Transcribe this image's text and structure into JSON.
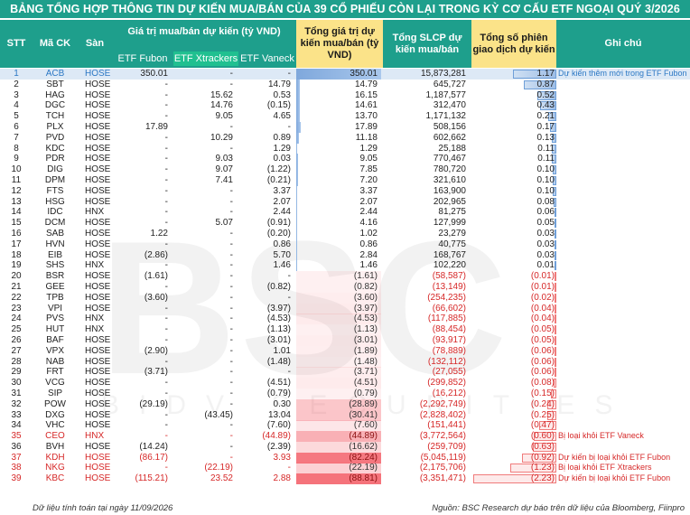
{
  "title": "BẢNG TỔNG HỢP THÔNG TIN DỰ KIẾN MUA/BÁN CỦA 39 CỔ PHIẾU CÒN LẠI TRONG KỲ CƠ CẤU ETF NGOẠI QUÝ 3/2026",
  "headers": {
    "stt": "STT",
    "ma": "Mã CK",
    "san": "Sàn",
    "group": "Giá trị mua/bán dự kiến (tỷ VND)",
    "fubon": "ETF Fubon",
    "xtrackers": "ETF Xtrackers",
    "vaneck": "ETF Vaneck",
    "total": "Tổng giá trị dự kiến mua/bán (tỷ VND)",
    "slcp": "Tổng SLCP dự kiến mua/bán",
    "sessions": "Tổng số phiên giao dịch dự kiến",
    "note": "Ghi chú"
  },
  "colors": {
    "header_bg": "#1e9f8c",
    "highlight_bg": "#fbe389",
    "xtrackers_bg": "#20c090",
    "positive_bar": "#6f9fd8",
    "negative_bar": "#f36b6b",
    "negative_text": "#d62828",
    "first_row_bg": "#dde9f6"
  },
  "rows": [
    {
      "stt": "1",
      "ma": "ACB",
      "san": "HOSE",
      "fubon": "350.01",
      "xtr": "-",
      "van": "-",
      "total": "350.01",
      "tval": 350.01,
      "slcp": "15,873,281",
      "ses": "1.17",
      "sval": 1.17,
      "note": "Dự kiến thêm mới trong ETF Fubon"
    },
    {
      "stt": "2",
      "ma": "SBT",
      "san": "HOSE",
      "fubon": "-",
      "xtr": "-",
      "van": "14.79",
      "total": "14.79",
      "tval": 14.79,
      "slcp": "645,727",
      "ses": "0.87",
      "sval": 0.87,
      "note": ""
    },
    {
      "stt": "3",
      "ma": "HAG",
      "san": "HOSE",
      "fubon": "-",
      "xtr": "15.62",
      "van": "0.53",
      "total": "16.15",
      "tval": 16.15,
      "slcp": "1,187,577",
      "ses": "0.52",
      "sval": 0.52,
      "note": ""
    },
    {
      "stt": "4",
      "ma": "DGC",
      "san": "HOSE",
      "fubon": "-",
      "xtr": "14.76",
      "van": "(0.15)",
      "total": "14.61",
      "tval": 14.61,
      "slcp": "312,470",
      "ses": "0.43",
      "sval": 0.43,
      "note": ""
    },
    {
      "stt": "5",
      "ma": "TCH",
      "san": "HOSE",
      "fubon": "-",
      "xtr": "9.05",
      "van": "4.65",
      "total": "13.70",
      "tval": 13.7,
      "slcp": "1,171,132",
      "ses": "0.21",
      "sval": 0.21,
      "note": ""
    },
    {
      "stt": "6",
      "ma": "PLX",
      "san": "HOSE",
      "fubon": "17.89",
      "xtr": "-",
      "van": "-",
      "total": "17.89",
      "tval": 17.89,
      "slcp": "508,156",
      "ses": "0.17",
      "sval": 0.17,
      "note": ""
    },
    {
      "stt": "7",
      "ma": "PVD",
      "san": "HOSE",
      "fubon": "-",
      "xtr": "10.29",
      "van": "0.89",
      "total": "11.18",
      "tval": 11.18,
      "slcp": "602,662",
      "ses": "0.13",
      "sval": 0.13,
      "note": ""
    },
    {
      "stt": "8",
      "ma": "KDC",
      "san": "HOSE",
      "fubon": "-",
      "xtr": "-",
      "van": "1.29",
      "total": "1.29",
      "tval": 1.29,
      "slcp": "25,188",
      "ses": "0.11",
      "sval": 0.11,
      "note": ""
    },
    {
      "stt": "9",
      "ma": "PDR",
      "san": "HOSE",
      "fubon": "-",
      "xtr": "9.03",
      "van": "0.03",
      "total": "9.05",
      "tval": 9.05,
      "slcp": "770,467",
      "ses": "0.11",
      "sval": 0.11,
      "note": ""
    },
    {
      "stt": "10",
      "ma": "DIG",
      "san": "HOSE",
      "fubon": "-",
      "xtr": "9.07",
      "van": "(1.22)",
      "total": "7.85",
      "tval": 7.85,
      "slcp": "780,720",
      "ses": "0.10",
      "sval": 0.1,
      "note": ""
    },
    {
      "stt": "11",
      "ma": "DPM",
      "san": "HOSE",
      "fubon": "-",
      "xtr": "7.41",
      "van": "(0.21)",
      "total": "7.20",
      "tval": 7.2,
      "slcp": "321,610",
      "ses": "0.10",
      "sval": 0.1,
      "note": ""
    },
    {
      "stt": "12",
      "ma": "FTS",
      "san": "HOSE",
      "fubon": "-",
      "xtr": "-",
      "van": "3.37",
      "total": "3.37",
      "tval": 3.37,
      "slcp": "163,900",
      "ses": "0.10",
      "sval": 0.1,
      "note": ""
    },
    {
      "stt": "13",
      "ma": "HSG",
      "san": "HOSE",
      "fubon": "-",
      "xtr": "-",
      "van": "2.07",
      "total": "2.07",
      "tval": 2.07,
      "slcp": "202,965",
      "ses": "0.08",
      "sval": 0.08,
      "note": ""
    },
    {
      "stt": "14",
      "ma": "IDC",
      "san": "HNX",
      "fubon": "-",
      "xtr": "-",
      "van": "2.44",
      "total": "2.44",
      "tval": 2.44,
      "slcp": "81,275",
      "ses": "0.06",
      "sval": 0.06,
      "note": ""
    },
    {
      "stt": "15",
      "ma": "DCM",
      "san": "HOSE",
      "fubon": "-",
      "xtr": "5.07",
      "van": "(0.91)",
      "total": "4.16",
      "tval": 4.16,
      "slcp": "127,999",
      "ses": "0.05",
      "sval": 0.05,
      "note": ""
    },
    {
      "stt": "16",
      "ma": "SAB",
      "san": "HOSE",
      "fubon": "1.22",
      "xtr": "-",
      "van": "(0.20)",
      "total": "1.02",
      "tval": 1.02,
      "slcp": "23,279",
      "ses": "0.03",
      "sval": 0.03,
      "note": ""
    },
    {
      "stt": "17",
      "ma": "HVN",
      "san": "HOSE",
      "fubon": "-",
      "xtr": "-",
      "van": "0.86",
      "total": "0.86",
      "tval": 0.86,
      "slcp": "40,775",
      "ses": "0.03",
      "sval": 0.03,
      "note": ""
    },
    {
      "stt": "18",
      "ma": "EIB",
      "san": "HOSE",
      "fubon": "(2.86)",
      "xtr": "-",
      "van": "5.70",
      "total": "2.84",
      "tval": 2.84,
      "slcp": "168,767",
      "ses": "0.03",
      "sval": 0.03,
      "note": ""
    },
    {
      "stt": "19",
      "ma": "SHS",
      "san": "HNX",
      "fubon": "-",
      "xtr": "-",
      "van": "1.46",
      "total": "1.46",
      "tval": 1.46,
      "slcp": "102,220",
      "ses": "0.01",
      "sval": 0.01,
      "note": ""
    },
    {
      "stt": "20",
      "ma": "BSR",
      "san": "HOSE",
      "fubon": "(1.61)",
      "xtr": "-",
      "van": "-",
      "total": "(1.61)",
      "tval": -1.61,
      "slcp": "(58,587)",
      "ses": "(0.01)",
      "sval": -0.01,
      "note": ""
    },
    {
      "stt": "21",
      "ma": "GEE",
      "san": "HOSE",
      "fubon": "-",
      "xtr": "-",
      "van": "(0.82)",
      "total": "(0.82)",
      "tval": -0.82,
      "slcp": "(13,149)",
      "ses": "(0.01)",
      "sval": -0.01,
      "note": ""
    },
    {
      "stt": "22",
      "ma": "TPB",
      "san": "HOSE",
      "fubon": "(3.60)",
      "xtr": "-",
      "van": "-",
      "total": "(3.60)",
      "tval": -3.6,
      "slcp": "(254,235)",
      "ses": "(0.02)",
      "sval": -0.02,
      "note": ""
    },
    {
      "stt": "23",
      "ma": "VPI",
      "san": "HOSE",
      "fubon": "-",
      "xtr": "-",
      "van": "(3.97)",
      "total": "(3.97)",
      "tval": -3.97,
      "slcp": "(66,602)",
      "ses": "(0.04)",
      "sval": -0.04,
      "note": ""
    },
    {
      "stt": "24",
      "ma": "PVS",
      "san": "HNX",
      "fubon": "-",
      "xtr": "-",
      "van": "(4.53)",
      "total": "(4.53)",
      "tval": -4.53,
      "slcp": "(117,885)",
      "ses": "(0.04)",
      "sval": -0.04,
      "note": ""
    },
    {
      "stt": "25",
      "ma": "HUT",
      "san": "HNX",
      "fubon": "-",
      "xtr": "-",
      "van": "(1.13)",
      "total": "(1.13)",
      "tval": -1.13,
      "slcp": "(88,454)",
      "ses": "(0.05)",
      "sval": -0.05,
      "note": ""
    },
    {
      "stt": "26",
      "ma": "BAF",
      "san": "HOSE",
      "fubon": "-",
      "xtr": "-",
      "van": "(3.01)",
      "total": "(3.01)",
      "tval": -3.01,
      "slcp": "(93,917)",
      "ses": "(0.05)",
      "sval": -0.05,
      "note": ""
    },
    {
      "stt": "27",
      "ma": "VPX",
      "san": "HOSE",
      "fubon": "(2.90)",
      "xtr": "-",
      "van": "1.01",
      "total": "(1.89)",
      "tval": -1.89,
      "slcp": "(78,889)",
      "ses": "(0.06)",
      "sval": -0.06,
      "note": ""
    },
    {
      "stt": "28",
      "ma": "NAB",
      "san": "HOSE",
      "fubon": "-",
      "xtr": "-",
      "van": "(1.48)",
      "total": "(1.48)",
      "tval": -1.48,
      "slcp": "(132,112)",
      "ses": "(0.06)",
      "sval": -0.06,
      "note": ""
    },
    {
      "stt": "29",
      "ma": "FRT",
      "san": "HOSE",
      "fubon": "(3.71)",
      "xtr": "-",
      "van": "-",
      "total": "(3.71)",
      "tval": -3.71,
      "slcp": "(27,055)",
      "ses": "(0.06)",
      "sval": -0.06,
      "note": ""
    },
    {
      "stt": "30",
      "ma": "VCG",
      "san": "HOSE",
      "fubon": "-",
      "xtr": "-",
      "van": "(4.51)",
      "total": "(4.51)",
      "tval": -4.51,
      "slcp": "(299,852)",
      "ses": "(0.08)",
      "sval": -0.08,
      "note": ""
    },
    {
      "stt": "31",
      "ma": "SIP",
      "san": "HOSE",
      "fubon": "-",
      "xtr": "-",
      "van": "(0.79)",
      "total": "(0.79)",
      "tval": -0.79,
      "slcp": "(16,212)",
      "ses": "(0.15)",
      "sval": -0.15,
      "note": ""
    },
    {
      "stt": "32",
      "ma": "POW",
      "san": "HOSE",
      "fubon": "(29.19)",
      "xtr": "-",
      "van": "0.30",
      "total": "(28.89)",
      "tval": -28.89,
      "slcp": "(2,292,749)",
      "ses": "(0.24)",
      "sval": -0.24,
      "note": ""
    },
    {
      "stt": "33",
      "ma": "DXG",
      "san": "HOSE",
      "fubon": "-",
      "xtr": "(43.45)",
      "van": "13.04",
      "total": "(30.41)",
      "tval": -30.41,
      "slcp": "(2,828,402)",
      "ses": "(0.25)",
      "sval": -0.25,
      "note": ""
    },
    {
      "stt": "34",
      "ma": "VHC",
      "san": "HOSE",
      "fubon": "-",
      "xtr": "-",
      "van": "(7.60)",
      "total": "(7.60)",
      "tval": -7.6,
      "slcp": "(151,441)",
      "ses": "(0.47)",
      "sval": -0.47,
      "note": ""
    },
    {
      "stt": "35",
      "ma": "CEO",
      "san": "HNX",
      "fubon": "-",
      "xtr": "-",
      "van": "(44.89)",
      "total": "(44.89)",
      "tval": -44.89,
      "slcp": "(3,772,564)",
      "ses": "(0.60)",
      "sval": -0.6,
      "note": "Bị loại khỏi ETF Vaneck"
    },
    {
      "stt": "36",
      "ma": "BVH",
      "san": "HOSE",
      "fubon": "(14.24)",
      "xtr": "-",
      "van": "(2.39)",
      "total": "(16.62)",
      "tval": -16.62,
      "slcp": "(259,709)",
      "ses": "(0.63)",
      "sval": -0.63,
      "note": ""
    },
    {
      "stt": "37",
      "ma": "KDH",
      "san": "HOSE",
      "fubon": "(86.17)",
      "xtr": "-",
      "van": "3.93",
      "total": "(82.24)",
      "tval": -82.24,
      "slcp": "(5,045,119)",
      "ses": "(0.92)",
      "sval": -0.92,
      "note": "Dự kiến bị loại khỏi ETF Fubon"
    },
    {
      "stt": "38",
      "ma": "NKG",
      "san": "HOSE",
      "fubon": "-",
      "xtr": "(22.19)",
      "van": "-",
      "total": "(22.19)",
      "tval": -22.19,
      "slcp": "(2,175,706)",
      "ses": "(1.23)",
      "sval": -1.23,
      "note": "Bị loại khỏi ETF Xtrackers"
    },
    {
      "stt": "39",
      "ma": "KBC",
      "san": "HOSE",
      "fubon": "(115.21)",
      "xtr": "23.52",
      "van": "2.88",
      "total": "(88.81)",
      "tval": -88.81,
      "slcp": "(3,351,471)",
      "ses": "(2.23)",
      "sval": -2.23,
      "note": "Dự kiến bị loại khỏi ETF Fubon"
    }
  ],
  "watermark": "BSC",
  "watermark_sub": "BIDV SECURITIES",
  "footer_left": "Dữ liệu tính toán tại ngày 11/09/2026",
  "footer_right": "Nguồn: BSC Research dự báo trên dữ liệu của Bloomberg, Fiinpro"
}
